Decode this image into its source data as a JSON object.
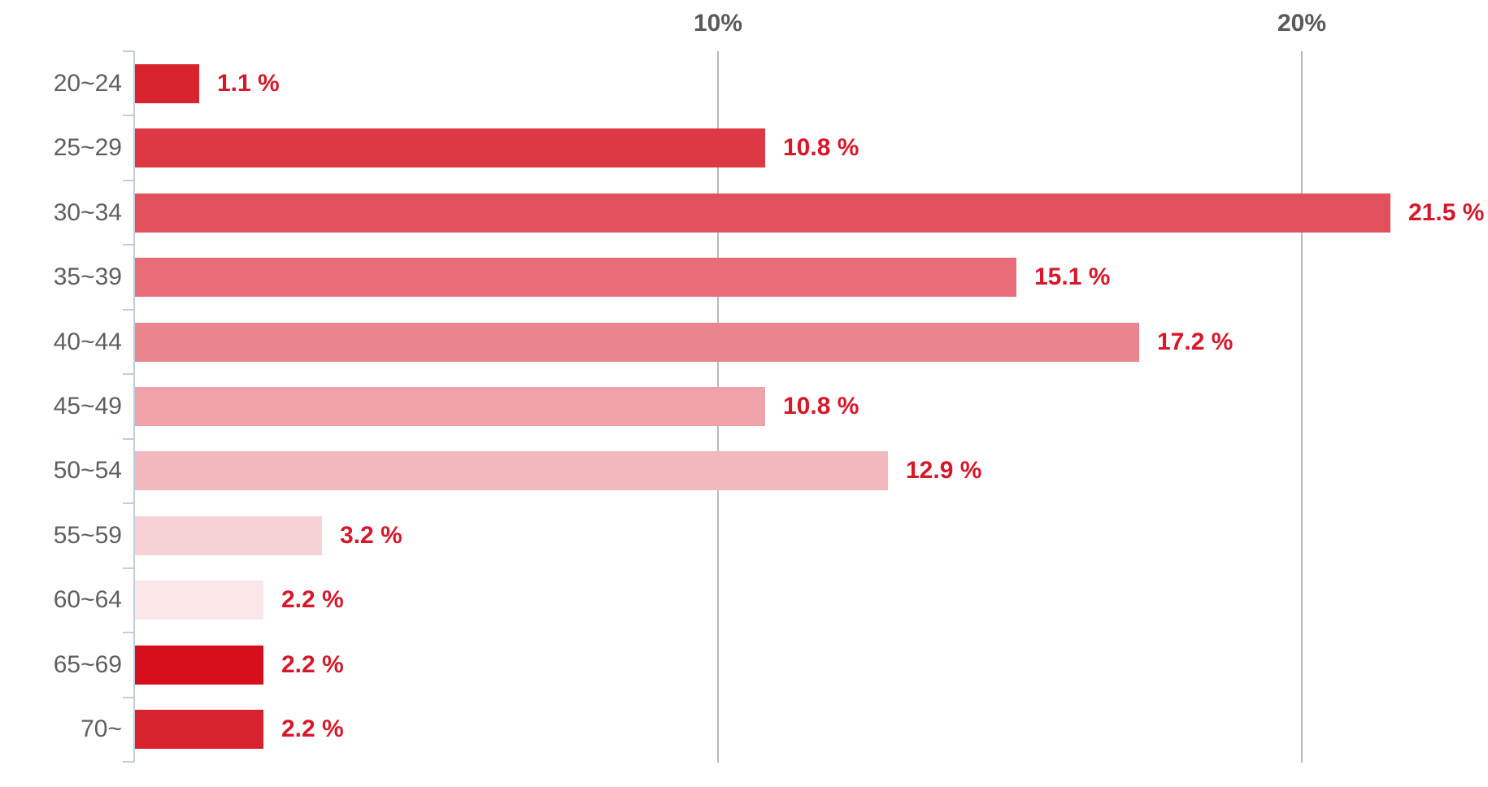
{
  "chart_data": {
    "type": "bar",
    "orientation": "horizontal",
    "title": "",
    "categories": [
      "20~24",
      "25~29",
      "30~34",
      "35~39",
      "40~44",
      "45~49",
      "50~54",
      "55~59",
      "60~64",
      "65~69",
      "70~"
    ],
    "values": [
      1.1,
      10.8,
      21.5,
      15.1,
      17.2,
      10.8,
      12.9,
      3.2,
      2.2,
      2.2,
      2.2
    ],
    "value_labels": [
      "1.1 %",
      "10.8 %",
      "21.5 %",
      "15.1 %",
      "17.2 %",
      "10.8 %",
      "12.9 %",
      "3.2 %",
      "2.2 %",
      "2.2 %",
      "2.2 %"
    ],
    "bar_colors": [
      "#d8232f",
      "#dc3945",
      "#e0515d",
      "#e76d78",
      "#ea8590",
      "#efa2aa",
      "#f3b8bd",
      "#f6d1d5",
      "#fbe6e8",
      "#d60e1c",
      "#d8222d"
    ],
    "xlabel": "",
    "ylabel": "",
    "x_axis": {
      "ticks": [
        "10%",
        "20%"
      ],
      "tick_values": [
        10,
        20
      ],
      "range": [
        0,
        23.2
      ],
      "grid": true,
      "tick_label_position": "top"
    },
    "legend": null
  },
  "style": {
    "background": "#ffffff",
    "value_label_color": "#d7182a",
    "category_label_color": "#5e5f61",
    "axis_tick_label_color": "#58595b",
    "axis_line_color": "#c2cddb",
    "gridline_color": "#b9b9b9"
  }
}
